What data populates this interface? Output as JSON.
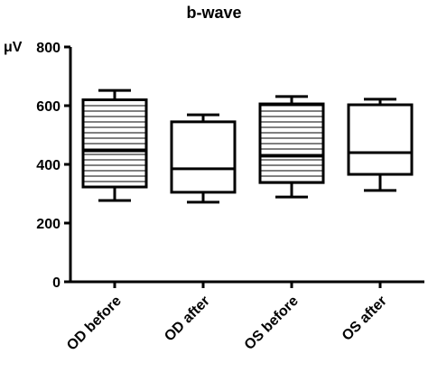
{
  "chart_data": {
    "type": "box",
    "title": "b-wave",
    "y_label": "μV",
    "categories": [
      "OD before",
      "OD after",
      "OS before",
      "OS after"
    ],
    "min": [
      277,
      271,
      289,
      311
    ],
    "q1": [
      323,
      305,
      338,
      366
    ],
    "median": [
      446,
      385,
      428,
      440
    ],
    "q3": [
      620,
      545,
      606,
      603
    ],
    "max": [
      652,
      569,
      631,
      622
    ],
    "hatched": [
      true,
      false,
      true,
      false
    ],
    "color": "#000000",
    "ylim": [
      0,
      800
    ],
    "yticks": [
      0,
      200,
      400,
      600,
      800
    ]
  }
}
